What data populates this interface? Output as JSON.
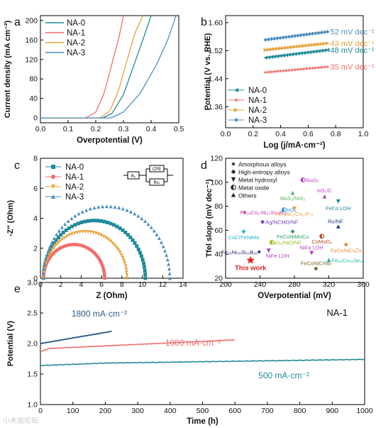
{
  "watermark": "小木虫论坛",
  "chart_data": [
    {
      "panel": "a",
      "type": "line",
      "xlabel": "Overpotential (V)",
      "ylabel": "Current density (mA cm⁻²)",
      "xlim": [
        0,
        0.5
      ],
      "ylim": [
        -10,
        210
      ],
      "xticks": [
        0.0,
        0.1,
        0.2,
        0.3,
        0.4,
        0.5
      ],
      "yticks": [
        0,
        40,
        80,
        120,
        160,
        200
      ],
      "legend_position": "top-left",
      "series": [
        {
          "name": "NA-0",
          "color": "#1f8a99",
          "onset": 0.225,
          "x": [
            0,
            0.225,
            0.26,
            0.3,
            0.34,
            0.37,
            0.4
          ],
          "y": [
            0,
            0,
            10,
            48,
            112,
            160,
            210
          ]
        },
        {
          "name": "NA-1",
          "color": "#ef6f6c",
          "onset": 0.165,
          "x": [
            0,
            0.165,
            0.2,
            0.23,
            0.26,
            0.285,
            0.3
          ],
          "y": [
            0,
            0,
            12,
            50,
            115,
            168,
            210
          ]
        },
        {
          "name": "NA-2",
          "color": "#e8a33d",
          "onset": 0.215,
          "x": [
            0,
            0.215,
            0.25,
            0.28,
            0.31,
            0.34,
            0.37
          ],
          "y": [
            0,
            0,
            14,
            52,
            112,
            172,
            210
          ]
        },
        {
          "name": "NA-3",
          "color": "#4f8fbf",
          "onset": 0.255,
          "x": [
            0,
            0.255,
            0.3,
            0.36,
            0.42,
            0.46,
            0.49
          ],
          "y": [
            0,
            0,
            12,
            50,
            110,
            160,
            210
          ]
        }
      ]
    },
    {
      "panel": "b",
      "type": "scatter",
      "xlabel": "Log (j/mA·cm⁻²)",
      "ylabel": "Potential (V vs. RHE)",
      "xlim": [
        0,
        1.0
      ],
      "ylim": [
        1.3,
        1.62
      ],
      "xticks": [
        0.0,
        0.2,
        0.4,
        0.6,
        0.8,
        1.0
      ],
      "yticks": [
        1.36,
        1.44,
        1.52,
        1.6
      ],
      "legend_position": "bottom-left",
      "series": [
        {
          "name": "NA-0",
          "color": "#1f8a99",
          "marker": "triangle-left",
          "x_range": [
            0.29,
            0.74
          ],
          "y_start": 1.5,
          "y_end": 1.522,
          "label": "48 mV dec⁻¹"
        },
        {
          "name": "NA-1",
          "color": "#ef6f6c",
          "marker": "star",
          "x_range": [
            0.29,
            0.74
          ],
          "y_start": 1.458,
          "y_end": 1.474,
          "label": "35 mV dec⁻¹"
        },
        {
          "name": "NA-2",
          "color": "#e8a33d",
          "marker": "triangle-right",
          "x_range": [
            0.29,
            0.74
          ],
          "y_start": 1.522,
          "y_end": 1.541,
          "label": "43 mV dec⁻¹"
        },
        {
          "name": "NA-3",
          "color": "#4f8fbf",
          "marker": "diamond",
          "x_range": [
            0.29,
            0.74
          ],
          "y_start": 1.551,
          "y_end": 1.574,
          "label": "52 mV dec⁻¹"
        }
      ]
    },
    {
      "panel": "c",
      "type": "scatter",
      "xlabel": "Z (Ohm)",
      "ylabel": "-Z″ (Ohm)",
      "xlim": [
        0,
        14
      ],
      "ylim": [
        0,
        8
      ],
      "xticks": [
        0,
        2,
        4,
        6,
        8,
        10,
        12,
        14
      ],
      "yticks": [
        0,
        2,
        4,
        6,
        8
      ],
      "legend_position": "top-left",
      "circuit_labels": [
        "Rₛ",
        "CPE",
        "Rᴄₜ"
      ],
      "series": [
        {
          "name": "NA-0",
          "color": "#1f8a99",
          "marker": "square",
          "x_start": 0.3,
          "x_end": 10.3,
          "peak": 3.85
        },
        {
          "name": "NA-1",
          "color": "#ef6f6c",
          "marker": "circle",
          "x_start": 0.3,
          "x_end": 6.3,
          "peak": 2.25
        },
        {
          "name": "NA-2",
          "color": "#e8a33d",
          "marker": "triangle-down",
          "x_start": 0.3,
          "x_end": 8.5,
          "peak": 3.1
        },
        {
          "name": "NA-3",
          "color": "#4f8fbf",
          "marker": "triangle-up",
          "x_start": 0.3,
          "x_end": 12.7,
          "peak": 4.8
        }
      ]
    },
    {
      "panel": "d",
      "type": "scatter",
      "xlabel": "OVerpotential (mV)",
      "ylabel": "Tfel slope (mV dec⁻¹)",
      "xlim": [
        200,
        360
      ],
      "ylim": [
        20,
        120
      ],
      "xticks": [
        200,
        240,
        280,
        320,
        360
      ],
      "yticks": [
        20,
        40,
        60,
        80,
        100,
        120
      ],
      "legend_position": "top-left",
      "legend": [
        "Amorphous alloys",
        "High-entropy alloys",
        "Metal hydroxyl",
        "Metal oxide",
        "Others"
      ],
      "points": [
        {
          "label": "RuO₂",
          "x": 290,
          "y": 102,
          "color": "#b43fbf",
          "marker": "oxide"
        },
        {
          "label": "MoS₂/NiS₂",
          "x": 278,
          "y": 91,
          "color": "#55b46a",
          "marker": "others"
        },
        {
          "label": "IrO₂/C",
          "x": 315,
          "y": 88,
          "color": "#b43fbf",
          "marker": "others"
        },
        {
          "label": "Fe₂₉Co₂₇Ni₂₃Si₁₀B₁₁",
          "x": 222,
          "y": 75,
          "color": "#c23aa7",
          "marker": "star"
        },
        {
          "label": "IrO₂",
          "x": 268,
          "y": 77,
          "color": "#2f8fd8",
          "marker": "oxide"
        },
        {
          "label": "Fe₂₅Ni₂₅Co₁₅P₁₅",
          "x": 280,
          "y": 78,
          "color": "#e8a33d",
          "marker": "hydroxyl"
        },
        {
          "label": "FeCo LDH",
          "x": 331,
          "y": 84,
          "color": "#1f8a99",
          "marker": "hydroxyl"
        },
        {
          "label": "Ag/NCMO/NF",
          "x": 243,
          "y": 67,
          "color": "#7b3fbf",
          "marker": "hea"
        },
        {
          "label": "Ru/NF",
          "x": 331,
          "y": 63,
          "color": "#1e3a7b",
          "marker": "others"
        },
        {
          "label": "CoCrFeNiMo",
          "x": 221,
          "y": 59,
          "color": "#1fb8c9",
          "marker": "hea"
        },
        {
          "label": "FeCoNiMnCu",
          "x": 278,
          "y": 59,
          "color": "#2e9e6a",
          "marker": "hea"
        },
        {
          "label": "RuO₂/NiO/NF",
          "x": 254,
          "y": 50,
          "color": "#9bbf2f",
          "marker": "oxide"
        },
        {
          "label": "CoMoO₄",
          "x": 312,
          "y": 55,
          "color": "#b34a1e",
          "marker": "oxide"
        },
        {
          "label": "FeCoNiCuZn",
          "x": 340,
          "y": 48,
          "color": "#e88a3d",
          "marker": "hea"
        },
        {
          "label": "Fe₃₅Ni₃₅Si₁₀B₂₀",
          "x": 239,
          "y": 42,
          "color": "#222266",
          "marker": "star"
        },
        {
          "label": "NiFe LDH",
          "x": 250,
          "y": 43,
          "color": "#b43fbf",
          "marker": "hydroxyl"
        },
        {
          "label": "NiFe LDH",
          "x": 300,
          "y": 41,
          "color": "#b43fbf",
          "marker": "hydroxyl"
        },
        {
          "label": "Fe₅₀Co₅₀Se₂₀",
          "x": 320,
          "y": 35,
          "color": "#1fb8a9",
          "marker": "others"
        },
        {
          "label": "FeCoNiCrNb",
          "x": 305,
          "y": 28,
          "color": "#7b6a2f",
          "marker": "hea"
        },
        {
          "label": "This work",
          "x": 229,
          "y": 35,
          "color": "#e02020",
          "marker": "star",
          "highlight": true
        }
      ]
    },
    {
      "panel": "e",
      "type": "line",
      "title": "NA-1",
      "xlabel": "Time (h)",
      "ylabel": "Potential (V)",
      "xlim": [
        0,
        1000
      ],
      "ylim": [
        1.0,
        3.0
      ],
      "xticks": [
        0,
        100,
        200,
        300,
        400,
        500,
        600,
        700,
        800,
        900,
        1000
      ],
      "yticks": [
        1.0,
        1.5,
        2.0,
        2.5,
        3.0
      ],
      "series": [
        {
          "name": "1800 mA·cm⁻²",
          "color": "#2e5b87",
          "x": [
            0,
            220
          ],
          "y": [
            2.0,
            2.2
          ]
        },
        {
          "name": "1000 mA·cm⁻²",
          "color": "#ef6f6c",
          "x": [
            0,
            30,
            600
          ],
          "y": [
            1.87,
            1.92,
            2.06
          ]
        },
        {
          "name": "500 mA·cm⁻²",
          "color": "#1f8a99",
          "x": [
            0,
            200,
            1000
          ],
          "y": [
            1.64,
            1.68,
            1.74
          ]
        }
      ]
    }
  ]
}
